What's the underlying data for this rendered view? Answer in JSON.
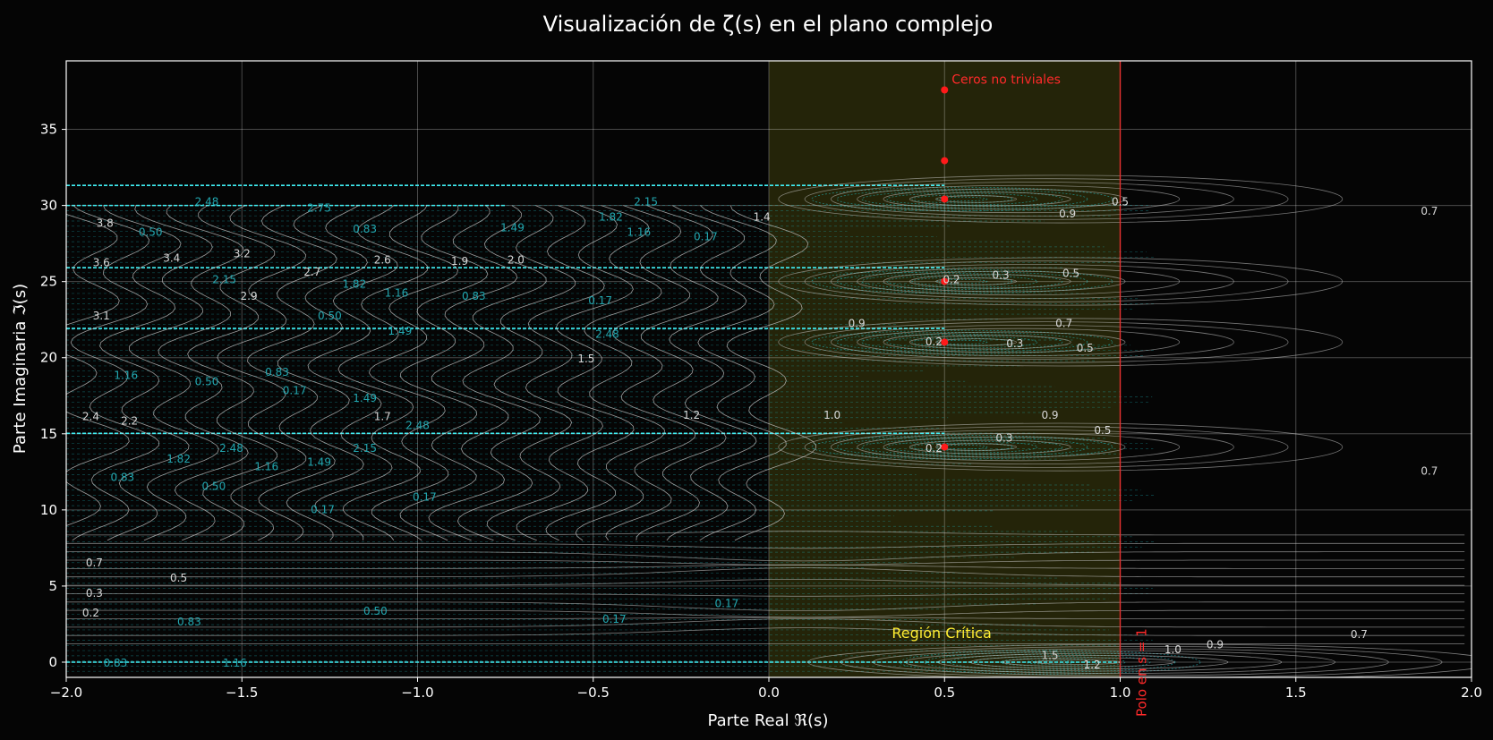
{
  "chart_data": {
    "type": "contour",
    "title": "Visualización de ζ(s) en el plano complejo",
    "xlabel": "Parte Real ℜ(s)",
    "ylabel": "Parte Imaginaria ℑ(s)",
    "xlim": [
      -2.0,
      2.0
    ],
    "ylim": [
      -1,
      39.5
    ],
    "xticks": [
      -2.0,
      -1.5,
      -1.0,
      -0.5,
      0.0,
      0.5,
      1.0,
      1.5,
      2.0
    ],
    "xtick_labels": [
      "−2.0",
      "−1.5",
      "−1.0",
      "−0.5",
      "0.0",
      "0.5",
      "1.0",
      "1.5",
      "2.0"
    ],
    "yticks": [
      0,
      5,
      10,
      15,
      20,
      25,
      30,
      35
    ],
    "ytick_labels": [
      "0",
      "5",
      "10",
      "15",
      "20",
      "25",
      "30",
      "35"
    ],
    "grid": true,
    "colors": {
      "background": "#050505",
      "magnitude_contours": "#cfcfcf",
      "phase_contours": "#1fd6df",
      "critical_region": "#2a2a0a",
      "zeros": "#ff1a1a",
      "pole_line": "#e53030",
      "region_text": "#ffee33"
    },
    "nontrivial_zeros": [
      {
        "re": 0.5,
        "im": 14.13
      },
      {
        "re": 0.5,
        "im": 21.02
      },
      {
        "re": 0.5,
        "im": 25.01
      },
      {
        "re": 0.5,
        "im": 30.42
      },
      {
        "re": 0.5,
        "im": 32.94
      },
      {
        "re": 0.5,
        "im": 37.59
      }
    ],
    "critical_region": {
      "re_min": 0.0,
      "re_max": 1.0
    },
    "pole": {
      "re": 1.0
    },
    "annotations": {
      "zeros_label": "Ceros no triviales",
      "region_label": "Región Crítica",
      "pole_label": "Polo en s = 1"
    },
    "magnitude_labels": [
      {
        "x": 1.0,
        "y": 30.0,
        "text": "0.5"
      },
      {
        "x": 0.85,
        "y": 29.2,
        "text": "0.9"
      },
      {
        "x": -0.02,
        "y": 29.0,
        "text": "1.4"
      },
      {
        "x": 1.88,
        "y": 29.4,
        "text": "0.7"
      },
      {
        "x": -0.72,
        "y": 26.2,
        "text": "2.0"
      },
      {
        "x": -0.88,
        "y": 26.1,
        "text": "1.9"
      },
      {
        "x": -1.3,
        "y": 25.4,
        "text": "2.7"
      },
      {
        "x": -1.1,
        "y": 26.2,
        "text": "2.6"
      },
      {
        "x": -1.5,
        "y": 26.6,
        "text": "3.2"
      },
      {
        "x": -1.7,
        "y": 26.3,
        "text": "3.4"
      },
      {
        "x": -1.9,
        "y": 26.0,
        "text": "3.6"
      },
      {
        "x": -1.9,
        "y": 22.5,
        "text": "3.1"
      },
      {
        "x": -1.48,
        "y": 23.8,
        "text": "2.9"
      },
      {
        "x": -1.89,
        "y": 28.6,
        "text": "3.8"
      },
      {
        "x": 0.52,
        "y": 24.9,
        "text": "0.2"
      },
      {
        "x": 0.66,
        "y": 25.2,
        "text": "0.3"
      },
      {
        "x": 0.86,
        "y": 25.3,
        "text": "0.5"
      },
      {
        "x": 0.25,
        "y": 22.0,
        "text": "0.9"
      },
      {
        "x": 0.84,
        "y": 22.0,
        "text": "0.7"
      },
      {
        "x": 0.47,
        "y": 20.8,
        "text": "0.2"
      },
      {
        "x": 0.7,
        "y": 20.7,
        "text": "0.3"
      },
      {
        "x": 0.9,
        "y": 20.4,
        "text": "0.5"
      },
      {
        "x": -0.52,
        "y": 19.7,
        "text": "1.5"
      },
      {
        "x": -1.93,
        "y": 15.9,
        "text": "2.4"
      },
      {
        "x": -1.82,
        "y": 15.6,
        "text": "2.2"
      },
      {
        "x": -1.1,
        "y": 15.9,
        "text": "1.7"
      },
      {
        "x": -0.22,
        "y": 16.0,
        "text": "1.2"
      },
      {
        "x": 0.18,
        "y": 16.0,
        "text": "1.0"
      },
      {
        "x": 0.8,
        "y": 16.0,
        "text": "0.9"
      },
      {
        "x": 0.95,
        "y": 15.0,
        "text": "0.5"
      },
      {
        "x": 0.67,
        "y": 14.5,
        "text": "0.3"
      },
      {
        "x": 0.47,
        "y": 13.8,
        "text": "0.2"
      },
      {
        "x": 1.88,
        "y": 12.3,
        "text": "0.7"
      },
      {
        "x": -1.92,
        "y": 6.3,
        "text": "0.7"
      },
      {
        "x": -1.68,
        "y": 5.3,
        "text": "0.5"
      },
      {
        "x": -1.92,
        "y": 4.3,
        "text": "0.3"
      },
      {
        "x": -1.93,
        "y": 3.0,
        "text": "0.2"
      },
      {
        "x": 1.68,
        "y": 1.6,
        "text": "0.7"
      },
      {
        "x": 1.27,
        "y": 0.9,
        "text": "0.9"
      },
      {
        "x": 1.15,
        "y": 0.6,
        "text": "1.0"
      },
      {
        "x": 0.8,
        "y": 0.2,
        "text": "1.5"
      },
      {
        "x": 0.92,
        "y": -0.4,
        "text": "1.2"
      }
    ],
    "phase_labels": [
      {
        "x": -1.6,
        "y": 30.0,
        "text": "2.48"
      },
      {
        "x": -1.28,
        "y": 29.6,
        "text": "2.75"
      },
      {
        "x": -0.35,
        "y": 30.0,
        "text": "2.15"
      },
      {
        "x": -0.45,
        "y": 29.0,
        "text": "1.82"
      },
      {
        "x": -0.73,
        "y": 28.3,
        "text": "1.49"
      },
      {
        "x": -0.37,
        "y": 28.0,
        "text": "1.16"
      },
      {
        "x": -0.18,
        "y": 27.7,
        "text": "0.17"
      },
      {
        "x": -1.15,
        "y": 28.2,
        "text": "0.83"
      },
      {
        "x": -1.76,
        "y": 28.0,
        "text": "0.50"
      },
      {
        "x": -1.55,
        "y": 24.9,
        "text": "2.15"
      },
      {
        "x": -1.18,
        "y": 24.6,
        "text": "1.82"
      },
      {
        "x": -1.06,
        "y": 24.0,
        "text": "1.16"
      },
      {
        "x": -0.84,
        "y": 23.8,
        "text": "0.83"
      },
      {
        "x": -0.48,
        "y": 23.5,
        "text": "0.17"
      },
      {
        "x": -1.25,
        "y": 22.5,
        "text": "0.50"
      },
      {
        "x": -1.05,
        "y": 21.5,
        "text": "1.49"
      },
      {
        "x": -0.46,
        "y": 21.3,
        "text": "2.48"
      },
      {
        "x": -1.83,
        "y": 18.6,
        "text": "1.16"
      },
      {
        "x": -1.6,
        "y": 18.2,
        "text": "0.50"
      },
      {
        "x": -1.4,
        "y": 18.8,
        "text": "0.83"
      },
      {
        "x": -1.35,
        "y": 17.6,
        "text": "0.17"
      },
      {
        "x": -1.15,
        "y": 17.1,
        "text": "1.49"
      },
      {
        "x": -1.0,
        "y": 15.3,
        "text": "2.48"
      },
      {
        "x": -1.53,
        "y": 13.8,
        "text": "2.48"
      },
      {
        "x": -1.68,
        "y": 13.1,
        "text": "1.82"
      },
      {
        "x": -1.43,
        "y": 12.6,
        "text": "1.16"
      },
      {
        "x": -1.28,
        "y": 12.9,
        "text": "1.49"
      },
      {
        "x": -1.15,
        "y": 13.8,
        "text": "2.15"
      },
      {
        "x": -1.84,
        "y": 11.9,
        "text": "0.83"
      },
      {
        "x": -1.58,
        "y": 11.3,
        "text": "0.50"
      },
      {
        "x": -0.98,
        "y": 10.6,
        "text": "0.17"
      },
      {
        "x": -1.27,
        "y": 9.8,
        "text": "0.17"
      },
      {
        "x": -1.65,
        "y": 2.4,
        "text": "0.83"
      },
      {
        "x": -1.12,
        "y": 3.1,
        "text": "0.50"
      },
      {
        "x": -0.44,
        "y": 2.6,
        "text": "0.17"
      },
      {
        "x": -0.12,
        "y": 3.6,
        "text": "0.17"
      },
      {
        "x": -1.52,
        "y": -0.3,
        "text": "1.16"
      },
      {
        "x": -1.86,
        "y": -0.3,
        "text": "0.83"
      }
    ]
  }
}
